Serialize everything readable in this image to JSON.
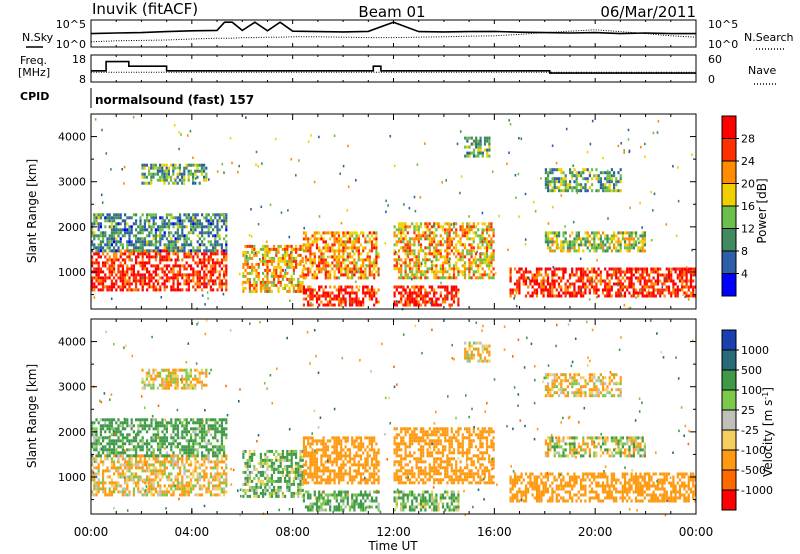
{
  "header": {
    "station": "Inuvik (fitACF)",
    "beam": "Beam 01",
    "date": "06/Mar/2011"
  },
  "nsky_panel": {
    "left_label": "N.Sky",
    "left_ticks": [
      "10^5",
      "10^0"
    ],
    "right_label": "N.Search",
    "right_ticks": [
      "10^5",
      "10^0"
    ]
  },
  "freq_panel": {
    "left_label_line1": "Freq.",
    "left_label_line2": "[MHz]",
    "left_ticks": [
      "18",
      "8"
    ],
    "right_label": "Nave",
    "right_ticks": [
      "60",
      "0"
    ]
  },
  "cpid": {
    "label": "CPID",
    "text": "normalsound (fast) 157"
  },
  "time_axis": {
    "label": "Time UT",
    "ticks": [
      "00:00",
      "04:00",
      "08:00",
      "12:00",
      "16:00",
      "20:00",
      "00:00"
    ]
  },
  "chart_data": [
    {
      "type": "line",
      "name": "N.Sky / N.Search counts",
      "x_unit": "hours UT",
      "x": [
        0,
        1,
        2,
        3,
        4,
        5,
        5.3,
        5.6,
        6,
        6.5,
        7,
        7.5,
        8,
        9,
        10,
        11,
        12,
        13,
        14,
        15,
        16,
        17,
        18,
        19,
        20,
        21,
        22,
        23,
        24
      ],
      "series": [
        {
          "name": "N.Sky",
          "values": [
            300,
            400,
            500,
            800,
            1200,
            1500,
            90000,
            90000,
            1500,
            90000,
            1200,
            90000,
            1000,
            800,
            700,
            900,
            90000,
            800,
            700,
            800,
            900,
            600,
            500,
            400,
            500,
            300,
            400,
            300,
            300
          ]
        },
        {
          "name": "N.Search",
          "values": [
            5,
            8,
            10,
            12,
            20,
            30,
            30,
            30,
            40,
            40,
            50,
            50,
            60,
            60,
            50,
            40,
            40,
            50,
            60,
            80,
            100,
            200,
            500,
            1000,
            2000,
            800,
            300,
            100,
            50
          ]
        }
      ],
      "ylim_log10": [
        0,
        5
      ]
    },
    {
      "type": "line",
      "name": "Frequency and Nave",
      "x_unit": "hours UT",
      "x": [
        0,
        0.6,
        1.5,
        3,
        5.5,
        6,
        8,
        11.2,
        11.5,
        12,
        14,
        16,
        18.2,
        21.5,
        24
      ],
      "series": [
        {
          "name": "Freq (MHz)",
          "values": [
            12,
            16,
            14,
            12,
            12,
            12,
            12,
            14,
            12,
            12,
            12,
            12,
            11,
            11,
            11
          ]
        },
        {
          "name": "Nave",
          "values": [
            20,
            20,
            20,
            20,
            20,
            20,
            20,
            20,
            20,
            20,
            20,
            20,
            20,
            20,
            20
          ]
        }
      ],
      "ylim_left": [
        8,
        18
      ],
      "ylim_right": [
        0,
        60
      ]
    },
    {
      "type": "heatmap",
      "name": "Power",
      "xlabel": "Time UT",
      "ylabel": "Slant Range [km]",
      "xlim_hours": [
        0,
        24
      ],
      "ylim_km": [
        180,
        4500
      ],
      "yticks": [
        1000,
        2000,
        3000,
        4000
      ],
      "colorbar": {
        "label": "Power [dB]",
        "ticks": [
          4,
          8,
          12,
          16,
          20,
          24,
          28
        ],
        "colors": [
          "#0000ff",
          "#2e5ea8",
          "#3f8a5e",
          "#6cc04a",
          "#f0d000",
          "#ff8c00",
          "#ff3000",
          "#ff0000"
        ]
      },
      "echo_regions": [
        {
          "t0": 0.0,
          "t1": 5.4,
          "r0": 600,
          "r1": 1500,
          "level": 28
        },
        {
          "t0": 0.0,
          "t1": 5.4,
          "r0": 1500,
          "r1": 2300,
          "level": 10
        },
        {
          "t0": 2.0,
          "t1": 4.6,
          "r0": 3000,
          "r1": 3400,
          "level": 12
        },
        {
          "t0": 6.0,
          "t1": 8.4,
          "r0": 600,
          "r1": 1600,
          "level": 20
        },
        {
          "t0": 8.4,
          "t1": 11.4,
          "r0": 300,
          "r1": 700,
          "level": 28
        },
        {
          "t0": 8.4,
          "t1": 11.4,
          "r0": 900,
          "r1": 1900,
          "level": 22
        },
        {
          "t0": 12.0,
          "t1": 14.6,
          "r0": 300,
          "r1": 700,
          "level": 28
        },
        {
          "t0": 12.0,
          "t1": 16.0,
          "r0": 900,
          "r1": 2100,
          "level": 20
        },
        {
          "t0": 14.8,
          "t1": 15.8,
          "r0": 3600,
          "r1": 4000,
          "level": 12
        },
        {
          "t0": 16.6,
          "t1": 24.0,
          "r0": 500,
          "r1": 1100,
          "level": 28
        },
        {
          "t0": 18.0,
          "t1": 22.0,
          "r0": 1500,
          "r1": 1900,
          "level": 16
        },
        {
          "t0": 18.0,
          "t1": 21.0,
          "r0": 2800,
          "r1": 3300,
          "level": 12
        }
      ]
    },
    {
      "type": "heatmap",
      "name": "Velocity",
      "xlabel": "Time UT",
      "ylabel": "Slant Range [km]",
      "xlim_hours": [
        0,
        24
      ],
      "ylim_km": [
        180,
        4500
      ],
      "yticks": [
        1000,
        2000,
        3000,
        4000
      ],
      "colorbar": {
        "label": "Velocity [m s^-1]",
        "ticks": [
          1000,
          500,
          100,
          25,
          -25,
          -100,
          -500,
          -1000
        ],
        "colors": [
          "#1a3fb0",
          "#2a6a78",
          "#3f9a48",
          "#7cc84a",
          "#c0c0b8",
          "#f5d060",
          "#ff9a10",
          "#ff6a00",
          "#ff0000"
        ]
      },
      "echo_regions": [
        {
          "t0": 0.0,
          "t1": 5.4,
          "r0": 600,
          "r1": 1500,
          "level": -100
        },
        {
          "t0": 0.0,
          "t1": 5.4,
          "r0": 1500,
          "r1": 2300,
          "level": 200
        },
        {
          "t0": 2.0,
          "t1": 4.6,
          "r0": 3000,
          "r1": 3400,
          "level": -100
        },
        {
          "t0": 6.0,
          "t1": 8.4,
          "r0": 600,
          "r1": 1600,
          "level": 100
        },
        {
          "t0": 8.4,
          "t1": 11.4,
          "r0": 300,
          "r1": 700,
          "level": 200
        },
        {
          "t0": 8.4,
          "t1": 11.4,
          "r0": 900,
          "r1": 1900,
          "level": -300
        },
        {
          "t0": 12.0,
          "t1": 14.6,
          "r0": 300,
          "r1": 700,
          "level": 100
        },
        {
          "t0": 12.0,
          "t1": 16.0,
          "r0": 900,
          "r1": 2100,
          "level": -300
        },
        {
          "t0": 14.8,
          "t1": 15.8,
          "r0": 3600,
          "r1": 4000,
          "level": -100
        },
        {
          "t0": 16.6,
          "t1": 24.0,
          "r0": 500,
          "r1": 1100,
          "level": -300
        },
        {
          "t0": 18.0,
          "t1": 22.0,
          "r0": 1500,
          "r1": 1900,
          "level": 0
        },
        {
          "t0": 18.0,
          "t1": 21.0,
          "r0": 2800,
          "r1": 3300,
          "level": -100
        }
      ]
    }
  ]
}
